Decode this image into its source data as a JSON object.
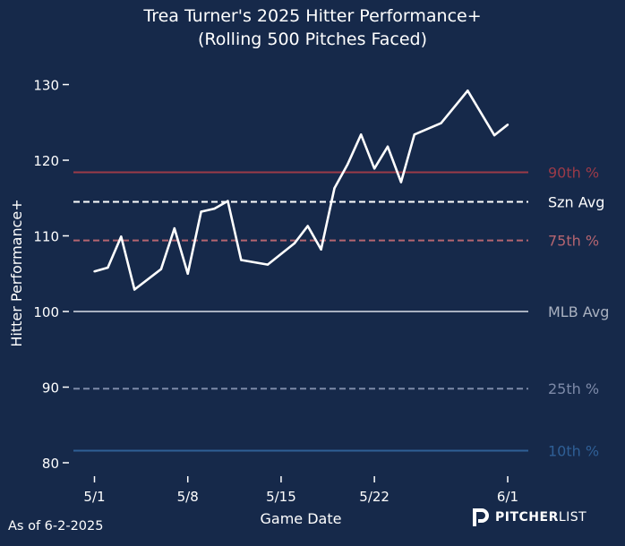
{
  "title_line1": "Trea Turner's 2025 Hitter Performance+",
  "title_line2": "(Rolling 500 Pitches Faced)",
  "footer": {
    "as_of": "As of 6-2-2025",
    "brand_bold": "PITCHER",
    "brand_light": "LIST",
    "brand_icon": "pitcherlist-p-logo"
  },
  "colors": {
    "background": "#16294a",
    "line": "#ffffff",
    "p90": "#9b3a48",
    "p75": "#b56570",
    "szn": "#ffffff",
    "mlb": "#a9b1c0",
    "p25": "#7d8aa8",
    "p10": "#2f5f96"
  },
  "chart_data": {
    "type": "line",
    "title": "Trea Turner's 2025 Hitter Performance+ (Rolling 500 Pitches Faced)",
    "xlabel": "Game Date",
    "ylabel": "Hitter Performance+",
    "ylim": [
      77.5,
      133
    ],
    "yticks": [
      80,
      90,
      100,
      110,
      120,
      130
    ],
    "xticks": [
      {
        "day": 1,
        "label": "5/1"
      },
      {
        "day": 8,
        "label": "5/8"
      },
      {
        "day": 15,
        "label": "5/15"
      },
      {
        "day": 22,
        "label": "5/22"
      },
      {
        "day": 32,
        "label": "6/1"
      }
    ],
    "xlim": [
      0,
      33
    ],
    "grid": false,
    "series": [
      {
        "x": [
          1,
          2,
          3,
          4,
          6,
          7,
          8,
          9,
          10,
          11,
          12,
          14,
          16,
          17,
          18,
          19,
          20,
          21,
          22,
          23,
          24,
          25,
          27,
          29,
          31,
          32
        ],
        "y": [
          105.3,
          105.8,
          109.9,
          102.9,
          105.6,
          111.0,
          105.0,
          113.2,
          113.6,
          114.6,
          106.8,
          106.2,
          109.0,
          111.3,
          108.2,
          116.3,
          119.5,
          123.4,
          118.9,
          121.8,
          117.1,
          123.4,
          124.9,
          129.2,
          123.3,
          124.7
        ]
      }
    ],
    "reference_lines": [
      {
        "label": "90th %",
        "value": 118.4,
        "style": "solid",
        "color_key": "p90"
      },
      {
        "label": "Szn Avg",
        "value": 114.5,
        "style": "dashed",
        "color_key": "szn"
      },
      {
        "label": "75th %",
        "value": 109.4,
        "style": "dashed",
        "color_key": "p75"
      },
      {
        "label": "MLB Avg",
        "value": 100,
        "style": "solid",
        "color_key": "mlb"
      },
      {
        "label": "25th %",
        "value": 89.8,
        "style": "dashed",
        "color_key": "p25"
      },
      {
        "label": "10th %",
        "value": 81.6,
        "style": "solid",
        "color_key": "p10"
      }
    ]
  }
}
